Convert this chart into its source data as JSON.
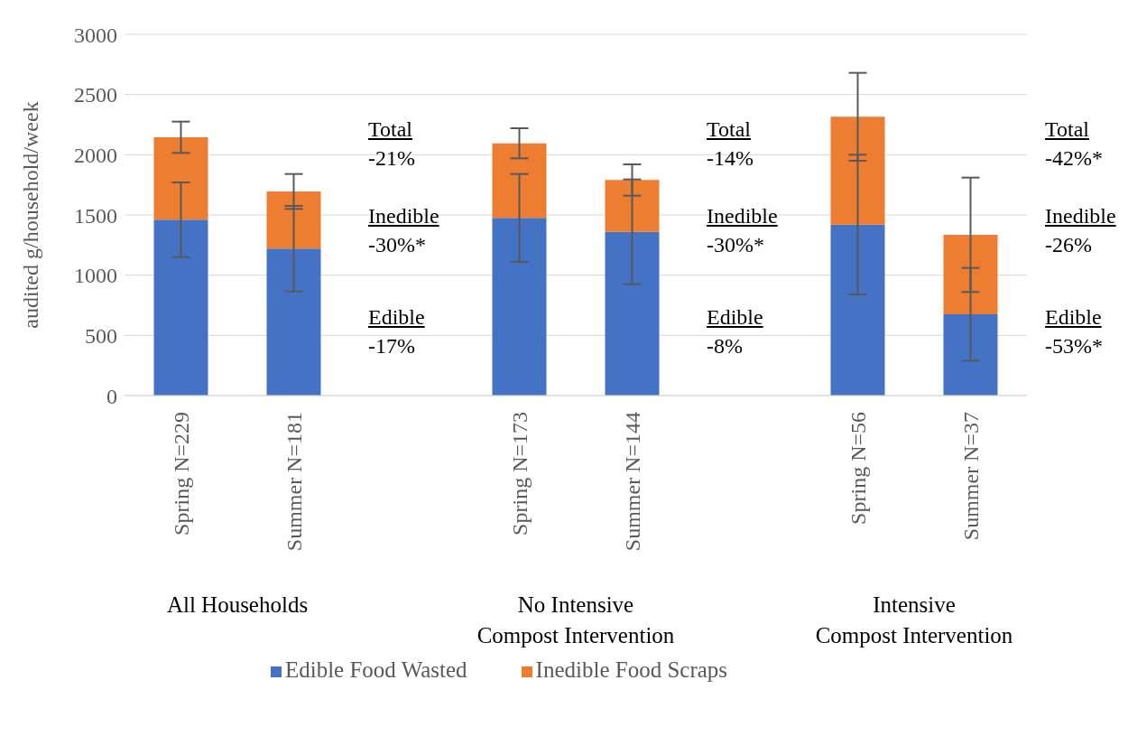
{
  "chart_data": {
    "type": "bar",
    "stacked": true,
    "ylabel": "audited g/household/week",
    "categories": [
      "Spring N=229",
      "Summer N=181",
      null,
      "Spring N=173",
      "Summer N=144",
      null,
      "Spring N=56",
      "Summer N=37"
    ],
    "series": [
      {
        "name": "Edible Food Wasted",
        "color": "#4472c4",
        "values": [
          1460,
          1220,
          null,
          1475,
          1360,
          null,
          1420,
          675
        ],
        "errors": [
          310,
          355,
          null,
          365,
          435,
          null,
          580,
          385
        ]
      },
      {
        "name": "Inedible Food Scraps",
        "color": "#ed7d31",
        "values": [
          685,
          475,
          null,
          620,
          430,
          null,
          895,
          660
        ],
        "errors": [
          130,
          145,
          null,
          125,
          130,
          null,
          365,
          475
        ]
      }
    ],
    "ylim": [
      0,
      3000
    ],
    "yticks": [
      0,
      500,
      1000,
      1500,
      2000,
      2500,
      3000
    ],
    "grid": "y",
    "legend": "bottom",
    "annotations": [
      "All Households",
      "Total\n-21%",
      "Inedible\n-30%*",
      "Edible\n-17%",
      "No Intensive\nCompost Intervention",
      "Total\n-14%",
      "Inedible\n-30%*",
      "Edible\n-8%",
      "Intensive\nCompost Intervention",
      "Total\n-42%*",
      "Inedible\n-26%",
      "Edible\n-53%*"
    ]
  }
}
